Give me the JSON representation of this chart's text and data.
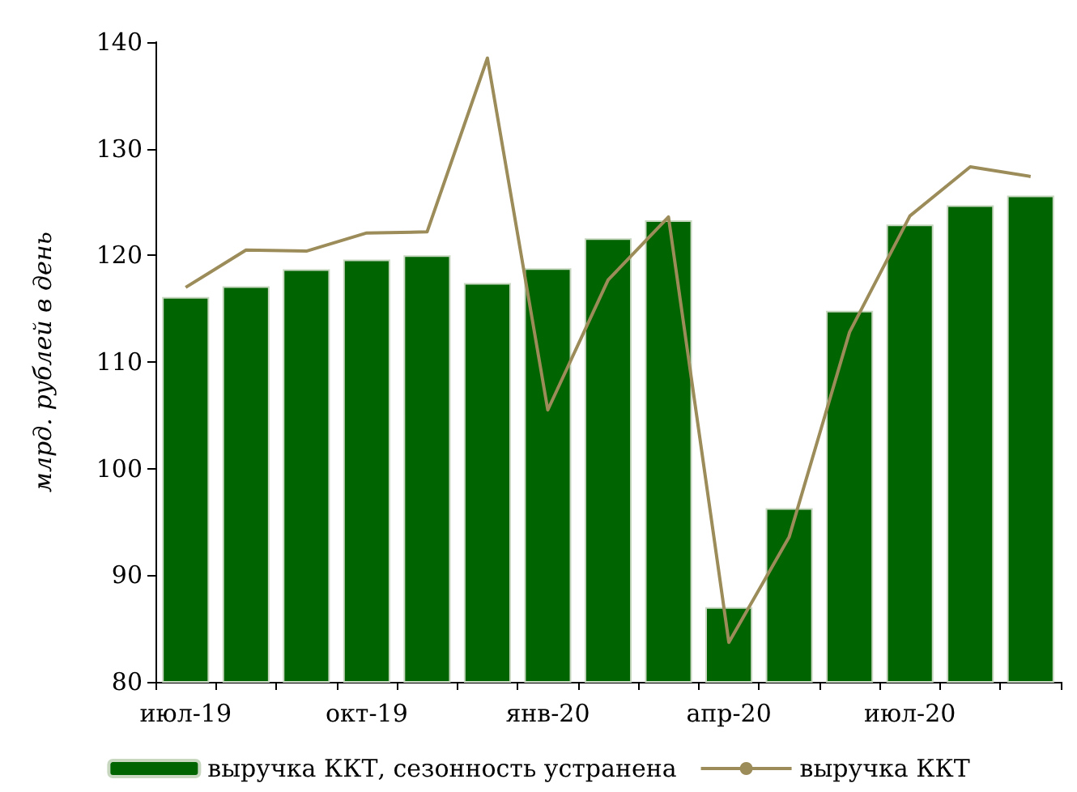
{
  "chart_data": {
    "type": "bar",
    "ylabel": "млрд. рублей в день",
    "categories": [
      "июл-19",
      null,
      null,
      "окт-19",
      null,
      null,
      "янв-20",
      null,
      null,
      "апр-20",
      null,
      null,
      "июл-20",
      null,
      null
    ],
    "series": [
      {
        "name": "выручка ККТ, сезонность устранена",
        "color": "#006400",
        "values": [
          116.1,
          117.1,
          118.7,
          119.6,
          120.0,
          117.4,
          118.8,
          121.6,
          123.3,
          87.0,
          96.3,
          114.8,
          122.9,
          124.7,
          125.6
        ]
      },
      {
        "name": "выручка ККТ",
        "type": "line",
        "color": "#9c8c5a",
        "values": [
          117.0,
          120.5,
          120.4,
          122.1,
          122.2,
          138.5,
          105.5,
          117.7,
          123.6,
          83.7,
          93.6,
          112.8,
          123.7,
          128.3,
          127.4
        ]
      }
    ],
    "ylim": [
      80,
      140
    ],
    "yticks": [
      80,
      90,
      100,
      110,
      120,
      130,
      140
    ],
    "grid": false,
    "legend": "bottom",
    "marker": "none",
    "line_style": "solid"
  }
}
